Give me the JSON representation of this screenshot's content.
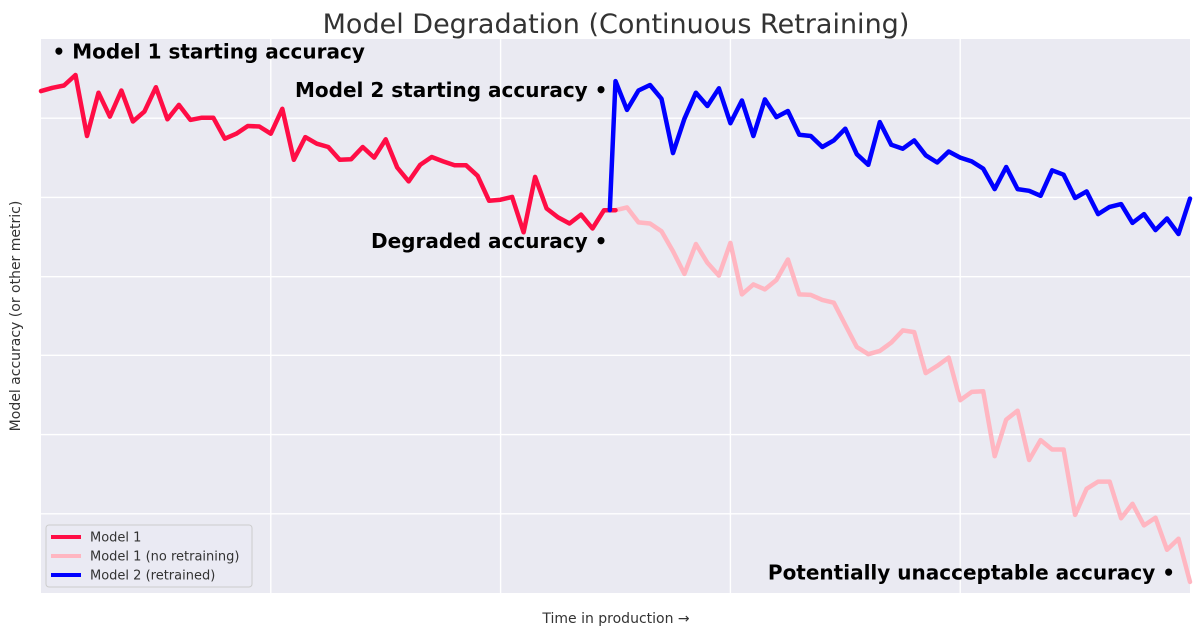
{
  "chart_data": {
    "type": "line",
    "title": "Model Degradation (Continuous Retraining)",
    "xlabel": "Time in production →",
    "ylabel": "Model accuracy (or other metric)",
    "xlim": [
      0,
      100
    ],
    "ylim": [
      0,
      100
    ],
    "grid": true,
    "xgrid_at": [
      20,
      40,
      60,
      80
    ],
    "ygrid_at": [
      14.3,
      28.6,
      42.9,
      57.1,
      71.4,
      85.7
    ],
    "legend_position": "lower-left",
    "series": [
      {
        "name": "Model 1",
        "color": "#ff0d45",
        "x": [
          0,
          1,
          2,
          3,
          4,
          5,
          6,
          7,
          8,
          9,
          10,
          11,
          12,
          13,
          14,
          15,
          16,
          17,
          18,
          19,
          20,
          21,
          22,
          23,
          24,
          25,
          26,
          27,
          28,
          29,
          30,
          31,
          32,
          33,
          34,
          35,
          36,
          37,
          38,
          39,
          40,
          41,
          42,
          43,
          44,
          45,
          46,
          47,
          48,
          49,
          50
        ],
        "y": [
          90.6,
          91.2,
          91.6,
          93.5,
          82.5,
          90.3,
          86.0,
          90.7,
          85.1,
          86.9,
          91.3,
          85.5,
          88.1,
          85.4,
          85.8,
          85.8,
          82.0,
          82.9,
          84.3,
          84.2,
          82.9,
          87.4,
          78.2,
          82.3,
          81.1,
          80.5,
          78.2,
          78.3,
          80.5,
          78.6,
          81.9,
          76.8,
          74.3,
          77.3,
          78.7,
          77.9,
          77.2,
          77.2,
          75.3,
          70.8,
          71.0,
          71.5,
          65.1,
          75.1,
          69.4,
          67.8,
          66.7,
          68.3,
          65.8,
          69.1,
          69.1
        ]
      },
      {
        "name": "Model 1 (no retraining)",
        "color": "#ffb6c1",
        "x": [
          50,
          51,
          52,
          53,
          54,
          55,
          56,
          57,
          58,
          59,
          60,
          61,
          62,
          63,
          64,
          65,
          66,
          67,
          68,
          69,
          70,
          71,
          72,
          73,
          74,
          75,
          76,
          77,
          78,
          79,
          80,
          81,
          82,
          83,
          84,
          85,
          86,
          87,
          88,
          89,
          90,
          91,
          92,
          93,
          94,
          95,
          96,
          97,
          98,
          99,
          100
        ],
        "y": [
          69.1,
          69.6,
          66.9,
          66.7,
          65.3,
          61.7,
          57.6,
          63.0,
          59.6,
          57.3,
          63.2,
          53.9,
          55.7,
          54.8,
          56.5,
          60.2,
          53.9,
          53.8,
          52.9,
          52.4,
          48.4,
          44.4,
          43.1,
          43.7,
          45.2,
          47.4,
          47.1,
          39.7,
          41.0,
          42.5,
          34.8,
          36.3,
          36.4,
          24.7,
          31.3,
          32.9,
          24.0,
          27.6,
          25.9,
          25.9,
          14.1,
          18.8,
          20.1,
          20.1,
          13.5,
          16.1,
          12.2,
          13.6,
          7.8,
          9.8,
          2.0
        ]
      },
      {
        "name": "Model 2 (retrained)",
        "color": "#0000ff",
        "x": [
          49.5,
          50,
          51,
          52,
          53,
          54,
          55,
          56,
          57,
          58,
          59,
          60,
          61,
          62,
          63,
          64,
          65,
          66,
          67,
          68,
          69,
          70,
          71,
          72,
          73,
          74,
          75,
          76,
          77,
          78,
          79,
          80,
          81,
          82,
          83,
          84,
          85,
          86,
          87,
          88,
          89,
          90,
          91,
          92,
          93,
          94,
          95,
          96,
          97,
          98,
          99,
          100
        ],
        "y": [
          69.1,
          92.4,
          87.2,
          90.7,
          91.7,
          89.2,
          79.4,
          85.6,
          90.3,
          87.9,
          91.1,
          84.8,
          88.9,
          82.5,
          89.1,
          85.9,
          87.0,
          82.7,
          82.5,
          80.5,
          81.7,
          83.8,
          79.2,
          77.3,
          85.0,
          80.9,
          80.2,
          81.7,
          79.0,
          77.7,
          79.7,
          78.6,
          77.9,
          76.6,
          72.9,
          76.9,
          72.9,
          72.6,
          71.7,
          76.3,
          75.5,
          71.3,
          72.5,
          68.4,
          69.7,
          70.2,
          66.8,
          68.4,
          65.5,
          67.6,
          64.8,
          71.2
        ]
      }
    ],
    "annotations": [
      {
        "text": "• Model 1 starting accuracy",
        "x": 1,
        "y": 96.5,
        "anchor": "start"
      },
      {
        "text": "Model 2 starting accuracy •",
        "x": 49.3,
        "y": 89.5,
        "anchor": "end"
      },
      {
        "text": "Degraded accuracy •",
        "x": 49.3,
        "y": 62.3,
        "anchor": "end"
      },
      {
        "text": "Potentially unacceptable accuracy •",
        "x": 98.7,
        "y": 2.4,
        "anchor": "end"
      }
    ]
  }
}
